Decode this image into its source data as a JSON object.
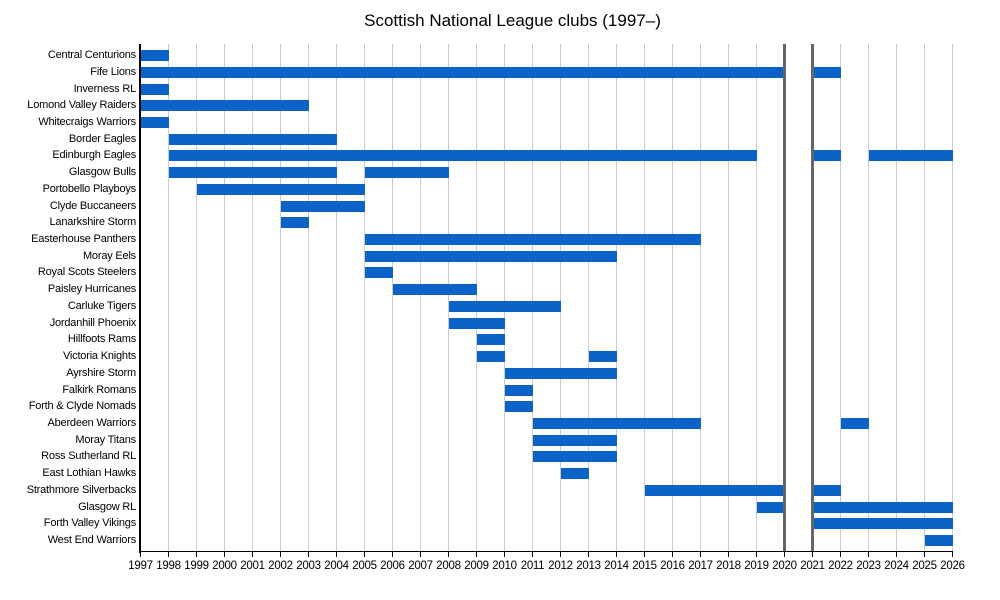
{
  "title": "Scottish National League clubs (1997–)",
  "colors": {
    "bar": "#0b63c8",
    "gridline": "#cbcbcb",
    "covid_line": "#666666",
    "axis": "#000000",
    "text": "#000000",
    "background": "#ffffff"
  },
  "chart_data": {
    "type": "bar",
    "variant": "gantt-timeline",
    "title": "Scottish National League clubs (1997–)",
    "xlabel": "",
    "ylabel": "",
    "grid": true,
    "legend": false,
    "x_axis": {
      "start": 1997,
      "end": 2026,
      "tick_step": 1,
      "tick_labels": [
        "1997",
        "1998",
        "1999",
        "2000",
        "2001",
        "2002",
        "2003",
        "2004",
        "2005",
        "2006",
        "2007",
        "2008",
        "2009",
        "2010",
        "2011",
        "2012",
        "2013",
        "2014",
        "2015",
        "2016",
        "2017",
        "2018",
        "2019",
        "2020",
        "2021",
        "2022",
        "2023",
        "2024",
        "2025",
        "2026"
      ]
    },
    "break_lines_years": [
      2020,
      2021
    ],
    "rows": [
      {
        "club": "Central Centurions",
        "segments": [
          [
            1997,
            1998
          ]
        ]
      },
      {
        "club": "Fife Lions",
        "segments": [
          [
            1997,
            2020
          ],
          [
            2021,
            2022
          ]
        ]
      },
      {
        "club": "Inverness RL",
        "segments": [
          [
            1997,
            1998
          ]
        ]
      },
      {
        "club": "Lomond Valley Raiders",
        "segments": [
          [
            1997,
            2003
          ]
        ]
      },
      {
        "club": "Whitecraigs Warriors",
        "segments": [
          [
            1997,
            1998
          ]
        ]
      },
      {
        "club": "Border Eagles",
        "segments": [
          [
            1998,
            2004
          ]
        ]
      },
      {
        "club": "Edinburgh Eagles",
        "segments": [
          [
            1998,
            2019
          ],
          [
            2021,
            2022
          ],
          [
            2023,
            2026
          ]
        ]
      },
      {
        "club": "Glasgow Bulls",
        "segments": [
          [
            1998,
            2004
          ],
          [
            2005,
            2008
          ]
        ]
      },
      {
        "club": "Portobello Playboys",
        "segments": [
          [
            1999,
            2005
          ]
        ]
      },
      {
        "club": "Clyde Buccaneers",
        "segments": [
          [
            2002,
            2005
          ]
        ]
      },
      {
        "club": "Lanarkshire Storm",
        "segments": [
          [
            2002,
            2003
          ]
        ]
      },
      {
        "club": "Easterhouse Panthers",
        "segments": [
          [
            2005,
            2017
          ]
        ]
      },
      {
        "club": "Moray Eels",
        "segments": [
          [
            2005,
            2014
          ]
        ]
      },
      {
        "club": "Royal Scots Steelers",
        "segments": [
          [
            2005,
            2006
          ]
        ]
      },
      {
        "club": "Paisley Hurricanes",
        "segments": [
          [
            2006,
            2009
          ]
        ]
      },
      {
        "club": "Carluke Tigers",
        "segments": [
          [
            2008,
            2012
          ]
        ]
      },
      {
        "club": "Jordanhill Phoenix",
        "segments": [
          [
            2008,
            2010
          ]
        ]
      },
      {
        "club": "Hillfoots Rams",
        "segments": [
          [
            2009,
            2010
          ]
        ]
      },
      {
        "club": "Victoria Knights",
        "segments": [
          [
            2009,
            2010
          ],
          [
            2013,
            2014
          ]
        ]
      },
      {
        "club": "Ayrshire Storm",
        "segments": [
          [
            2010,
            2014
          ]
        ]
      },
      {
        "club": "Falkirk Romans",
        "segments": [
          [
            2010,
            2011
          ]
        ]
      },
      {
        "club": "Forth & Clyde Nomads",
        "segments": [
          [
            2010,
            2011
          ]
        ]
      },
      {
        "club": "Aberdeen Warriors",
        "segments": [
          [
            2011,
            2017
          ],
          [
            2022,
            2023
          ]
        ]
      },
      {
        "club": "Moray Titans",
        "segments": [
          [
            2011,
            2014
          ]
        ]
      },
      {
        "club": "Ross Sutherland RL",
        "segments": [
          [
            2011,
            2014
          ]
        ]
      },
      {
        "club": "East Lothian Hawks",
        "segments": [
          [
            2012,
            2013
          ]
        ]
      },
      {
        "club": "Strathmore Silverbacks",
        "segments": [
          [
            2015,
            2020
          ],
          [
            2021,
            2022
          ]
        ]
      },
      {
        "club": "Glasgow RL",
        "segments": [
          [
            2019,
            2020
          ],
          [
            2021,
            2026
          ]
        ]
      },
      {
        "club": "Forth Valley Vikings",
        "segments": [
          [
            2021,
            2026
          ]
        ]
      },
      {
        "club": "West End Warriors",
        "segments": [
          [
            2025,
            2026
          ]
        ]
      }
    ]
  }
}
